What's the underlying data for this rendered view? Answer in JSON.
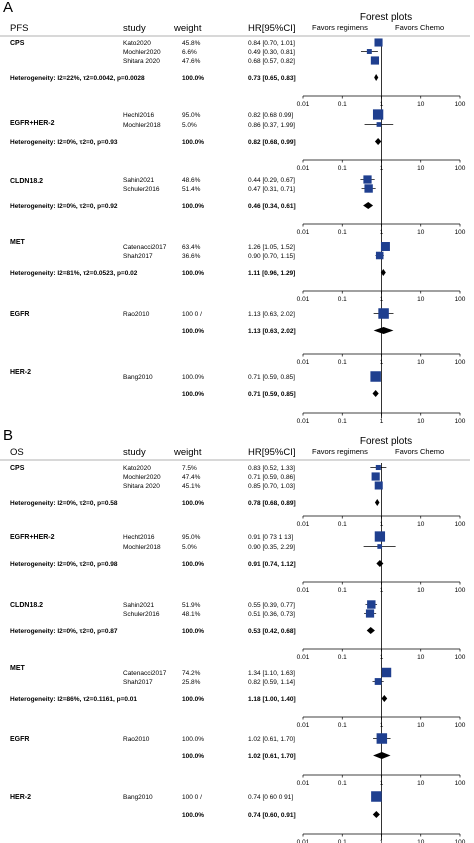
{
  "panels": [
    {
      "label": "A",
      "col_headers": {
        "measure": "PFS",
        "study": "study",
        "weight": "weight",
        "hr": "HR[95%CI]",
        "title": "Forest plots",
        "favors_left": "Favors regimens",
        "favors_right": "Favors Chemo"
      },
      "ticks": [
        "0.01",
        "0.1",
        "1",
        "10",
        "100"
      ],
      "groups": [
        {
          "name": "CPS",
          "studies": [
            {
              "study": "Kato2020",
              "weight": "45.8%",
              "hr_text": "0.84 [0.70, 1.01]",
              "hr": 0.84,
              "lo": 0.7,
              "hi": 1.01,
              "w": 45.8
            },
            {
              "study": "Mochler2020",
              "weight": "6.6%",
              "hr_text": "0.49 [0.30, 0.81]",
              "hr": 0.49,
              "lo": 0.3,
              "hi": 0.81,
              "w": 6.6
            },
            {
              "study": "Shitara 2020",
              "weight": "47.6%",
              "hr_text": "0.68 [0.57, 0.82]",
              "hr": 0.68,
              "lo": 0.57,
              "hi": 0.82,
              "w": 47.6
            }
          ],
          "het": "Heterogeneity: I2=22%, τ2=0.0042, p=0.0028",
          "total_weight": "100.0%",
          "pooled_text": "0.73 [0.65, 0.83]",
          "pooled": {
            "hr": 0.73,
            "lo": 0.65,
            "hi": 0.83
          }
        },
        {
          "name": "EGFR+HER-2",
          "studies": [
            {
              "study": "Hechl2016",
              "weight": "95.0%",
              "hr_text": "0.82 [0.68 0.99]",
              "hr": 0.82,
              "lo": 0.68,
              "hi": 0.99,
              "w": 95.0
            },
            {
              "study": "Mochler2018",
              "weight": "5.0%",
              "hr_text": "0.86 [0.37, 1.99]",
              "hr": 0.86,
              "lo": 0.37,
              "hi": 1.99,
              "w": 5.0
            }
          ],
          "het": "Heterogeneity: I2=0%, τ2=0, p=0.93",
          "total_weight": "100.0%",
          "pooled_text": "0.82 [0.68, 0.99]",
          "pooled": {
            "hr": 0.82,
            "lo": 0.68,
            "hi": 0.99
          }
        },
        {
          "name": "CLDN18.2",
          "studies": [
            {
              "study": "Sahin2021",
              "weight": "48.6%",
              "hr_text": "0.44 [0.29, 0.67]",
              "hr": 0.44,
              "lo": 0.29,
              "hi": 0.67,
              "w": 48.6
            },
            {
              "study": "Schuler2016",
              "weight": "51.4%",
              "hr_text": "0.47 [0.31, 0.71]",
              "hr": 0.47,
              "lo": 0.31,
              "hi": 0.71,
              "w": 51.4
            }
          ],
          "het": "Heterogeneity: I2=0%, τ2=0, p=0.92",
          "total_weight": "100.0%",
          "pooled_text": "0.46 [0.34, 0.61]",
          "pooled": {
            "hr": 0.46,
            "lo": 0.34,
            "hi": 0.61
          }
        },
        {
          "name": "MET",
          "studies": [
            {
              "study": "Catenacci2017",
              "weight": "63.4%",
              "hr_text": "1.26 [1.05, 1.52]",
              "hr": 1.26,
              "lo": 1.05,
              "hi": 1.52,
              "w": 63.4
            },
            {
              "study": "Shah2017",
              "weight": "36.6%",
              "hr_text": "0.90 [0.70, 1.15]",
              "hr": 0.9,
              "lo": 0.7,
              "hi": 1.15,
              "w": 36.6
            }
          ],
          "het": "Heterogeneity: I2=81%, τ2=0.0523, p=0.02",
          "total_weight": "100.0%",
          "pooled_text": "1.11 [0.96, 1.29]",
          "pooled": {
            "hr": 1.11,
            "lo": 0.96,
            "hi": 1.29
          }
        },
        {
          "name": "EGFR",
          "studies": [
            {
              "study": "Rao2010",
              "weight": "100 0 /",
              "hr_text": "1.13 [0.63, 2.02]",
              "hr": 1.13,
              "lo": 0.63,
              "hi": 2.02,
              "w": 100
            }
          ],
          "het": "",
          "total_weight": "100.0%",
          "pooled_text": "1.13 [0.63, 2.02]",
          "pooled": {
            "hr": 1.13,
            "lo": 0.63,
            "hi": 2.02
          }
        },
        {
          "name": "HER-2",
          "studies": [
            {
              "study": "Bang2010",
              "weight": "100.0%",
              "hr_text": "0.71 [0.59, 0.85]",
              "hr": 0.71,
              "lo": 0.59,
              "hi": 0.85,
              "w": 100
            }
          ],
          "het": "",
          "total_weight": "100.0%",
          "pooled_text": "0.71 [0.59, 0.85]",
          "pooled": {
            "hr": 0.71,
            "lo": 0.59,
            "hi": 0.85
          }
        }
      ]
    },
    {
      "label": "B",
      "col_headers": {
        "measure": "OS",
        "study": "study",
        "weight": "weight",
        "hr": "HR[95%CI]",
        "title": "Forest plots",
        "favors_left": "Favors regimens",
        "favors_right": "Favors Chemo"
      },
      "ticks": [
        "0.01",
        "0.1",
        "1",
        "10",
        "100"
      ],
      "groups": [
        {
          "name": "CPS",
          "studies": [
            {
              "study": "Kato2020",
              "weight": "7.5%",
              "hr_text": "0.83 [0.52, 1.33]",
              "hr": 0.83,
              "lo": 0.52,
              "hi": 1.33,
              "w": 7.5
            },
            {
              "study": "Mochler2020",
              "weight": "47.4%",
              "hr_text": "0.71 [0.59, 0.86]",
              "hr": 0.71,
              "lo": 0.59,
              "hi": 0.86,
              "w": 47.4
            },
            {
              "study": "Shitara 2020",
              "weight": "45.1%",
              "hr_text": "0.85 [0.70, 1.03]",
              "hr": 0.85,
              "lo": 0.7,
              "hi": 1.03,
              "w": 45.1
            }
          ],
          "het": "Heterogeneity: I2=0%, τ2=0, p=0.58",
          "total_weight": "100.0%",
          "pooled_text": "0.78 [0.68, 0.89]",
          "pooled": {
            "hr": 0.78,
            "lo": 0.68,
            "hi": 0.89
          }
        },
        {
          "name": "EGFR+HER-2",
          "studies": [
            {
              "study": "Hecht2016",
              "weight": "95.0%",
              "hr_text": "0.91 [0 73 1 13]",
              "hr": 0.91,
              "lo": 0.73,
              "hi": 1.13,
              "w": 95.0
            },
            {
              "study": "Mochler2018",
              "weight": "5.0%",
              "hr_text": "0.90 [0.35, 2.29]",
              "hr": 0.9,
              "lo": 0.35,
              "hi": 2.29,
              "w": 5.0
            }
          ],
          "het": "Heterogeneity: I2=0%, τ2=0, p=0.98",
          "total_weight": "100.0%",
          "pooled_text": "0.91 [0.74, 1.12]",
          "pooled": {
            "hr": 0.91,
            "lo": 0.74,
            "hi": 1.12
          }
        },
        {
          "name": "CLDN18.2",
          "studies": [
            {
              "study": "Sahin2021",
              "weight": "51.9%",
              "hr_text": "0.55 [0.39, 0.77]",
              "hr": 0.55,
              "lo": 0.39,
              "hi": 0.77,
              "w": 51.9
            },
            {
              "study": "Schuler2016",
              "weight": "48.1%",
              "hr_text": "0.51 [0.36, 0.73]",
              "hr": 0.51,
              "lo": 0.36,
              "hi": 0.73,
              "w": 48.1
            }
          ],
          "het": "Heterogeneity: I2=0%, τ2=0, p=0.87",
          "total_weight": "100.0%",
          "pooled_text": "0.53 [0.42, 0.68]",
          "pooled": {
            "hr": 0.53,
            "lo": 0.42,
            "hi": 0.68
          }
        },
        {
          "name": "MET",
          "studies": [
            {
              "study": "Catenacci2017",
              "weight": "74.2%",
              "hr_text": "1.34 [1.10, 1.63]",
              "hr": 1.34,
              "lo": 1.1,
              "hi": 1.63,
              "w": 74.2
            },
            {
              "study": "Shah2017",
              "weight": "25.8%",
              "hr_text": "0.82 [0.59, 1.14]",
              "hr": 0.82,
              "lo": 0.59,
              "hi": 1.14,
              "w": 25.8
            }
          ],
          "het": "Heterogeneity: I2=86%, τ2=0.1161, p=0.01",
          "total_weight": "100.0%",
          "pooled_text": "1.18 [1.00, 1.40]",
          "pooled": {
            "hr": 1.18,
            "lo": 1.0,
            "hi": 1.4
          }
        },
        {
          "name": "EGFR",
          "studies": [
            {
              "study": "Rao2010",
              "weight": "100.0%",
              "hr_text": "1.02 [0.61, 1.70]",
              "hr": 1.02,
              "lo": 0.61,
              "hi": 1.7,
              "w": 100
            }
          ],
          "het": "",
          "total_weight": "100.0%",
          "pooled_text": "1.02 [0.61, 1.70]",
          "pooled": {
            "hr": 1.02,
            "lo": 0.61,
            "hi": 1.7
          }
        },
        {
          "name": "HER-2",
          "studies": [
            {
              "study": "Bang2010",
              "weight": "100 0 /",
              "hr_text": "0.74 [0 60 0 91]",
              "hr": 0.74,
              "lo": 0.6,
              "hi": 0.91,
              "w": 100
            }
          ],
          "het": "",
          "total_weight": "100.0%",
          "pooled_text": "0.74 [0.60, 0.91]",
          "pooled": {
            "hr": 0.74,
            "lo": 0.6,
            "hi": 0.91
          }
        }
      ]
    }
  ],
  "colors": {
    "marker": "#1f3f8f",
    "line": "#000000",
    "divider": "#999999"
  },
  "chart_data": [
    {
      "type": "forest",
      "x_scale": "log",
      "xlim": [
        0.01,
        100
      ],
      "reference_line": 1,
      "series": [
        {
          "name": "CPS",
          "values": [
            0.84,
            0.49,
            0.68
          ],
          "pooled": 0.73
        },
        {
          "name": "EGFR+HER-2",
          "values": [
            0.82,
            0.86
          ],
          "pooled": 0.82
        },
        {
          "name": "CLDN18.2",
          "values": [
            0.44,
            0.47
          ],
          "pooled": 0.46
        },
        {
          "name": "MET",
          "values": [
            1.26,
            0.9
          ],
          "pooled": 1.11
        },
        {
          "name": "EGFR",
          "values": [
            1.13
          ],
          "pooled": 1.13
        },
        {
          "name": "HER-2",
          "values": [
            0.71
          ],
          "pooled": 0.71
        }
      ]
    },
    {
      "type": "forest",
      "x_scale": "log",
      "xlim": [
        0.01,
        100
      ],
      "reference_line": 1,
      "series": [
        {
          "name": "CPS",
          "values": [
            0.83,
            0.71,
            0.85
          ],
          "pooled": 0.78
        },
        {
          "name": "EGFR+HER-2",
          "values": [
            0.91,
            0.9
          ],
          "pooled": 0.91
        },
        {
          "name": "CLDN18.2",
          "values": [
            0.55,
            0.51
          ],
          "pooled": 0.53
        },
        {
          "name": "MET",
          "values": [
            1.34,
            0.82
          ],
          "pooled": 1.18
        },
        {
          "name": "EGFR",
          "values": [
            1.02
          ],
          "pooled": 1.02
        },
        {
          "name": "HER-2",
          "values": [
            0.74
          ],
          "pooled": 0.74
        }
      ]
    }
  ]
}
